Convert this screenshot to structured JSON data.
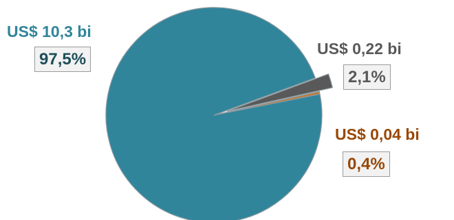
{
  "chart_data": {
    "type": "pie",
    "slices": [
      {
        "amount_label": "US$ 10,3 bi",
        "percent_label": "97,5%",
        "value": 97.5,
        "color": "#31859b",
        "label_color": "#31859b",
        "pct_color": "#1f4e5a"
      },
      {
        "amount_label": "US$ 0,22 bi",
        "percent_label": "2,1%",
        "value": 2.1,
        "color": "#595959",
        "label_color": "#595959",
        "pct_color": "#595959"
      },
      {
        "amount_label": "US$ 0,04 bi",
        "percent_label": "0,4%",
        "value": 0.4,
        "color": "#c07a3c",
        "label_color": "#984807",
        "pct_color": "#984807"
      }
    ]
  }
}
